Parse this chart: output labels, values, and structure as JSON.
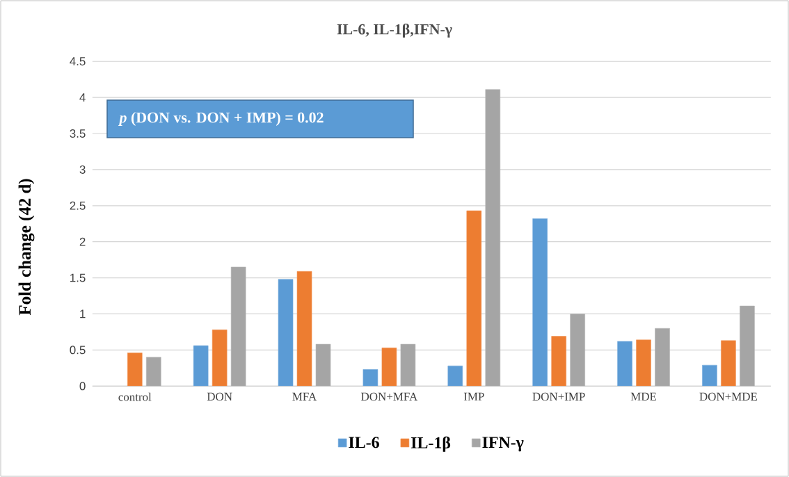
{
  "chart_data": {
    "type": "bar",
    "title": "IL-6, IL-1β,IFN-γ",
    "ylabel": "Fold change (42 d)",
    "categories": [
      "control",
      "DON",
      "MFA",
      "DON+MFA",
      "IMP",
      "DON+IMP",
      "MDE",
      "DON+MDE"
    ],
    "series": [
      {
        "name": "IL-6",
        "color": "#5b9bd5",
        "values": [
          null,
          0.56,
          1.48,
          0.23,
          0.28,
          2.32,
          0.62,
          0.29
        ]
      },
      {
        "name": "IL-1β",
        "color": "#ed7d31",
        "values": [
          0.46,
          0.78,
          1.59,
          0.53,
          2.43,
          0.69,
          0.64,
          0.63
        ]
      },
      {
        "name": "IFN-γ",
        "color": "#a5a5a5",
        "values": [
          0.4,
          1.65,
          0.58,
          0.58,
          4.11,
          1.0,
          0.8,
          1.11
        ]
      }
    ],
    "ylim": [
      0,
      4.5
    ],
    "yticks": [
      0,
      0.5,
      1,
      1.5,
      2,
      2.5,
      3,
      3.5,
      4,
      4.5
    ],
    "grid": "y",
    "legend": "bottom",
    "annotations": [
      "*p* (DON vs. DON + IMP) = 0.02"
    ]
  }
}
